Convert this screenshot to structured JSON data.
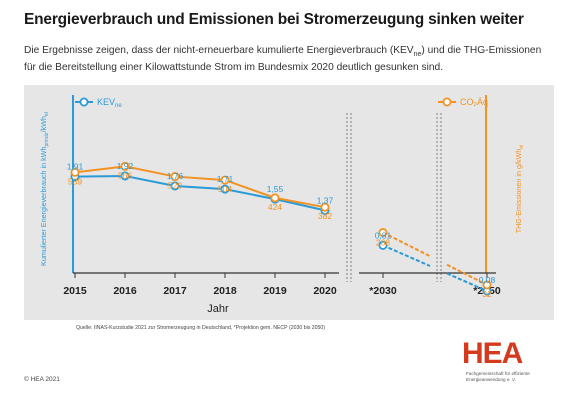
{
  "title": "Energieverbrauch und Emissionen bei Stromerzeugung sinken weiter",
  "subtitle_pre": "Die Ergebnisse zeigen, dass der nicht-erneuerbare kumulierte Energieverbrauch (KEV",
  "subtitle_sub": "ne",
  "subtitle_post": ") und die THG-Emissionen für die Bereitstellung einer Kilowattstunde Strom im Bundesmix 2020 deutlich gesunken sind.",
  "source": "Quelle: IINAS-Kurzstudie 2021 zur Stromerzeugung in Deutschland, *Projektion gem. NECP (2030 bis 2050)",
  "copyright": "© HEA 2021",
  "logo_text": "HEA",
  "logo_subtitle": "Fachgemeinschaft für effiziente Energieanwendung e. V.",
  "colors": {
    "kev": "#2a9ad8",
    "co2": "#f29222",
    "panel": "#e6e6e6",
    "axis": "#333333"
  },
  "chart_data": {
    "type": "line",
    "x": [
      "2015",
      "2016",
      "2017",
      "2018",
      "2019",
      "2020",
      "*2030",
      "*2050"
    ],
    "xlabel": "Jahr",
    "ylabel_left": "Kumulierter Energieverbrauch in kWh",
    "ylabel_left_sub": "primär",
    "ylabel_left_slash": "/kWh",
    "ylabel_left_sub2": "el",
    "ylabel_right": "THG-Emissionen in g/kWh",
    "ylabel_right_sub": "el",
    "series": [
      {
        "name": "KEV",
        "name_sub": "ne",
        "color": "#2a9ad8",
        "values": [
          1.91,
          1.92,
          1.76,
          1.71,
          1.55,
          1.37,
          0.81,
          0.08
        ],
        "labels": [
          "1,91",
          "1,92",
          "1,76",
          "1,71",
          "1,55",
          "1,37",
          "0,81",
          "0,08"
        ]
      },
      {
        "name": "CO₂Äq",
        "color": "#f29222",
        "values": [
          539,
          566,
          520,
          504,
          424,
          382,
          268,
          32
        ],
        "labels": [
          "539",
          "566",
          "520",
          "504",
          "424",
          "382",
          "268",
          "32"
        ]
      }
    ],
    "grid": false,
    "legend": "top"
  }
}
